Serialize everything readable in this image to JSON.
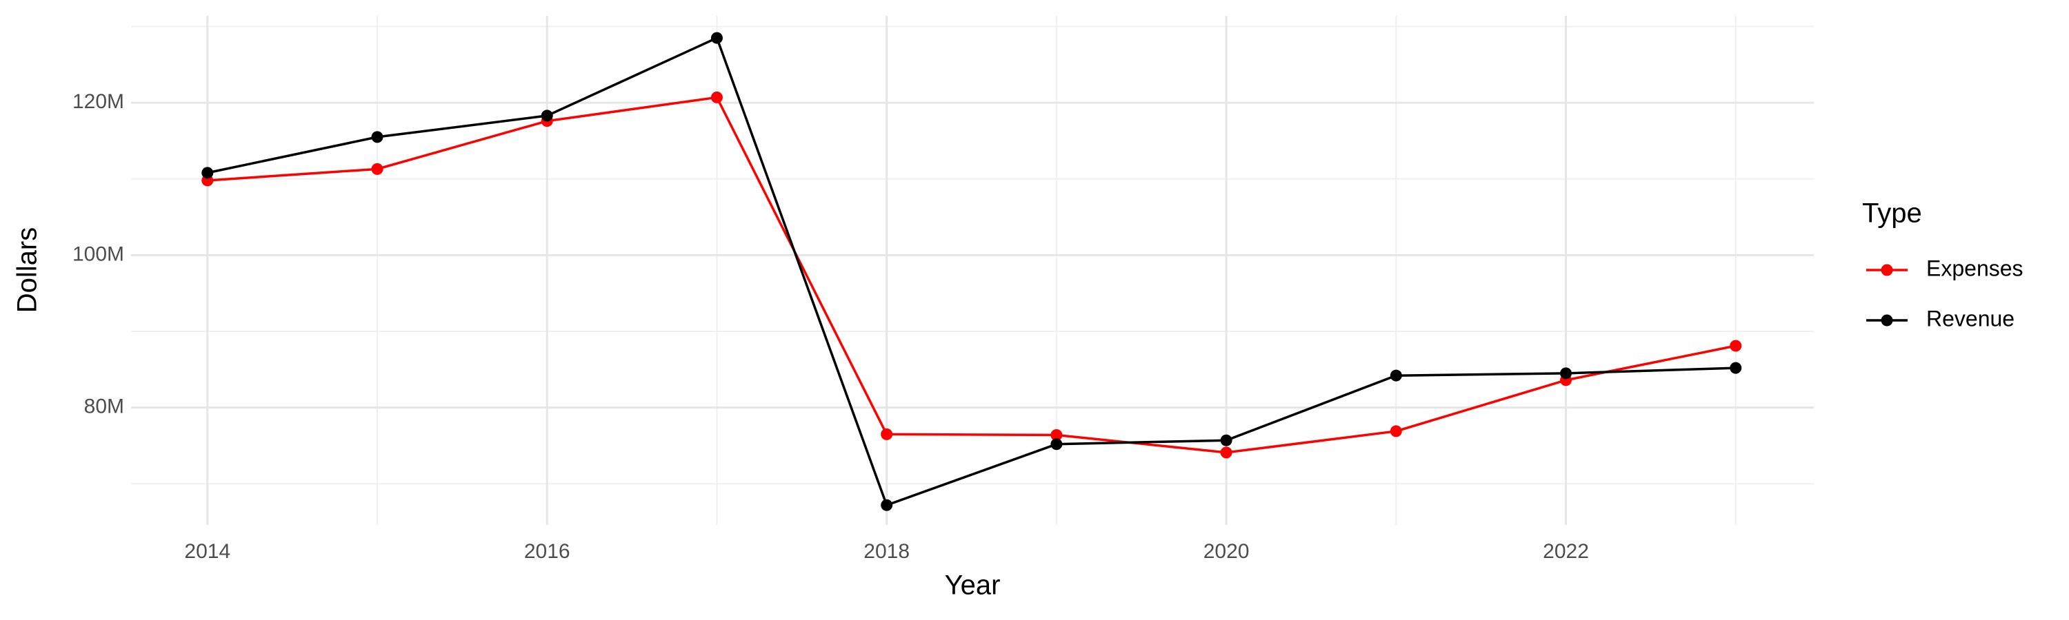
{
  "chart_data": {
    "type": "line",
    "x_label": "Year",
    "y_label": "Dollars",
    "legend_title": "Type",
    "x": [
      2014,
      2015,
      2016,
      2017,
      2018,
      2019,
      2020,
      2021,
      2022,
      2023
    ],
    "series": [
      {
        "name": "Expenses",
        "color": "#ff0000",
        "values": [
          109800000,
          111300000,
          117600000,
          120700000,
          76500000,
          76400000,
          74100000,
          76900000,
          83600000,
          88100000
        ]
      },
      {
        "name": "Revenue",
        "color": "#000000",
        "values": [
          110800000,
          115500000,
          118300000,
          128500000,
          67200000,
          75200000,
          75700000,
          84200000,
          84500000,
          85200000
        ]
      }
    ],
    "xlim": [
      2013.55,
      2023.46
    ],
    "xticks": [
      2014,
      2016,
      2018,
      2020,
      2022
    ],
    "ylim": [
      64600000,
      131400000
    ],
    "yticks": [
      {
        "value": 80000000,
        "label": "80M"
      },
      {
        "value": 100000000,
        "label": "100M"
      },
      {
        "value": 120000000,
        "label": "120M"
      }
    ],
    "x_minor_grid": [
      2015,
      2017,
      2019,
      2021,
      2023
    ],
    "y_minor_grid": [
      70000000,
      90000000,
      110000000,
      130000000
    ],
    "grid": true,
    "legend": "right"
  }
}
